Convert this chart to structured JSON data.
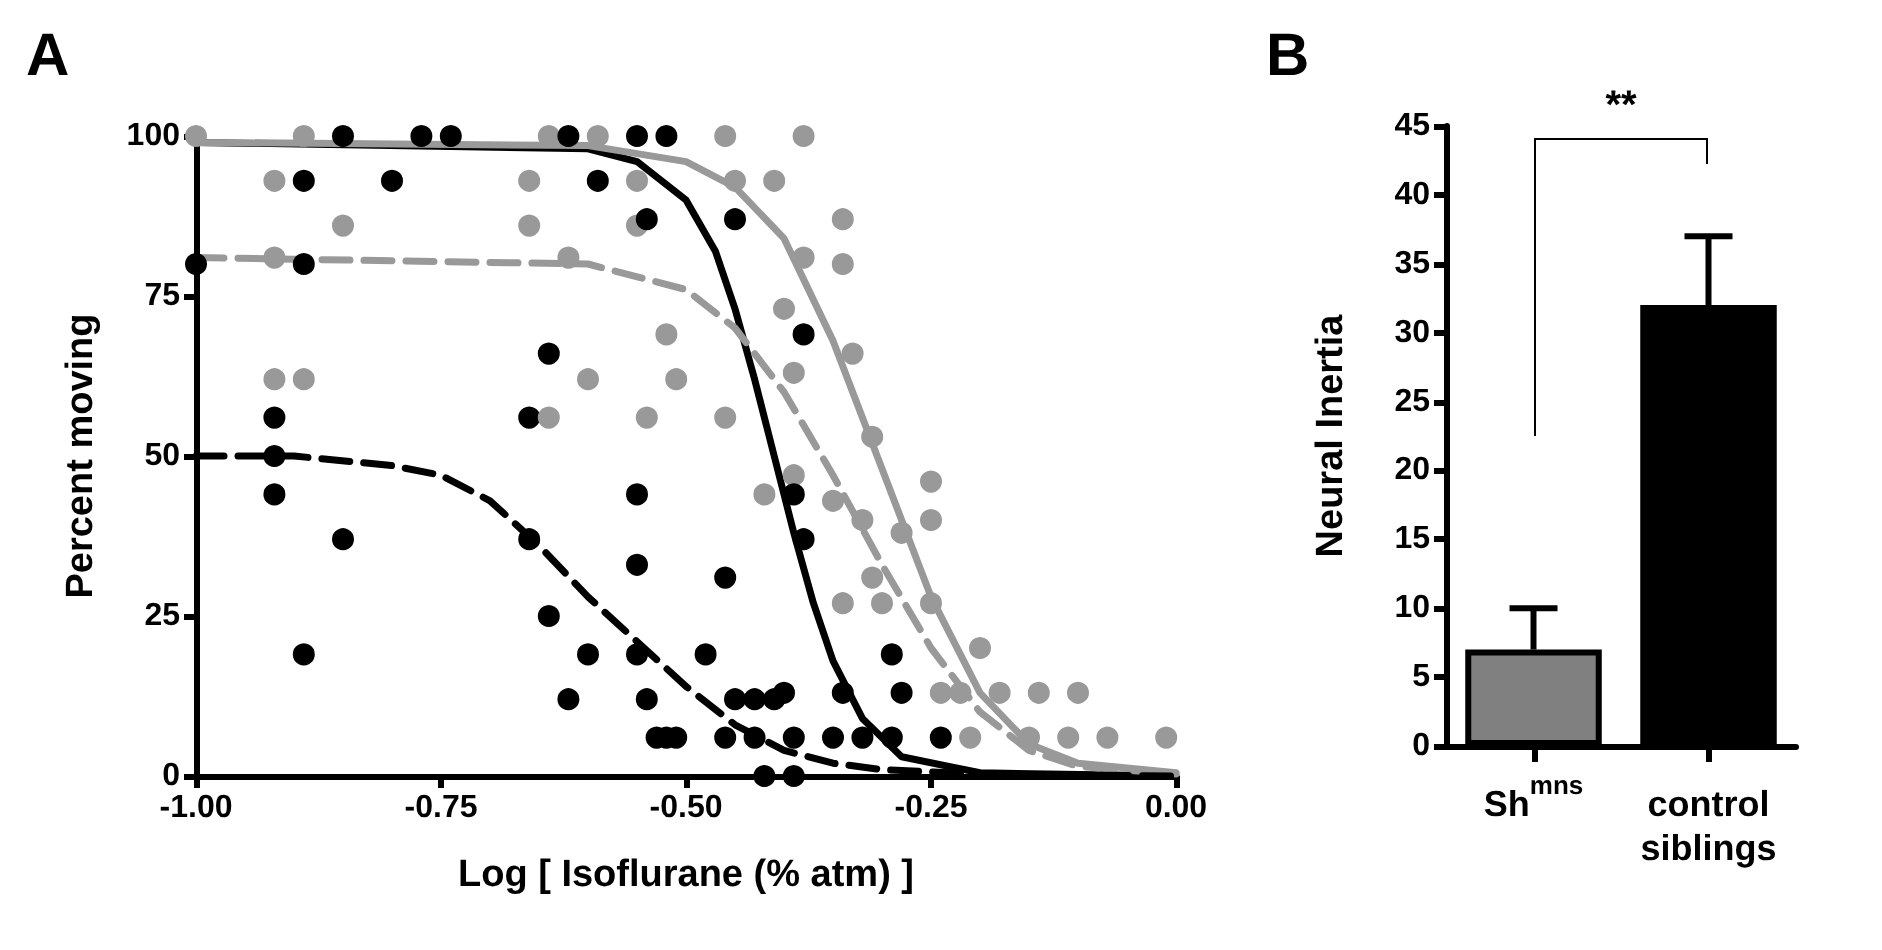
{
  "chart_data": [
    {
      "type": "scatter",
      "title": "A",
      "xlabel": "Log [ Isoflurane (% atm) ]",
      "ylabel": "Percent moving",
      "marker": "circle",
      "xlim": [
        -1,
        0
      ],
      "xticks": [
        {
          "value": -1,
          "label": "-1.00"
        },
        {
          "value": -0.75,
          "label": "-0.75"
        },
        {
          "value": -0.5,
          "label": "-0.50"
        },
        {
          "value": -0.25,
          "label": "-0.25"
        },
        {
          "value": 0,
          "label": "0.00"
        }
      ],
      "ylim": [
        0,
        100
      ],
      "yticks": [
        0,
        25,
        50,
        75,
        100
      ],
      "series": [
        {
          "type": "line",
          "marker": "none",
          "line_style": "solid",
          "color": "#000000",
          "x": [
            -1,
            -0.6,
            -0.55,
            -0.5,
            -0.47,
            -0.45,
            -0.43,
            -0.41,
            -0.39,
            -0.37,
            -0.35,
            -0.32,
            -0.28,
            -0.2,
            0
          ],
          "values": [
            99,
            98,
            96,
            90,
            82,
            73,
            62,
            50,
            38,
            27,
            18,
            9,
            3,
            0.5,
            0
          ]
        },
        {
          "type": "line",
          "marker": "none",
          "line_style": "solid",
          "color": "#999999",
          "x": [
            -1,
            -0.6,
            -0.5,
            -0.45,
            -0.4,
            -0.35,
            -0.3,
            -0.25,
            -0.2,
            -0.15,
            -0.1,
            0
          ],
          "values": [
            99,
            98.5,
            96,
            92,
            84,
            68,
            48,
            28,
            13,
            5,
            2,
            0.5
          ]
        },
        {
          "type": "line",
          "marker": "none",
          "line_style": "dashed",
          "color": "#999999",
          "x": [
            -1,
            -0.6,
            -0.5,
            -0.45,
            -0.4,
            -0.35,
            -0.3,
            -0.25,
            -0.2,
            -0.15,
            -0.1,
            0
          ],
          "values": [
            81,
            80,
            76,
            70,
            60,
            47,
            33,
            20,
            10,
            4,
            1.5,
            0.3
          ]
        },
        {
          "type": "line",
          "marker": "none",
          "line_style": "dashed",
          "color": "#000000",
          "x": [
            -1,
            -0.9,
            -0.8,
            -0.75,
            -0.7,
            -0.65,
            -0.6,
            -0.55,
            -0.5,
            -0.45,
            -0.4,
            -0.35,
            -0.3,
            -0.2,
            0
          ],
          "values": [
            50,
            50,
            48.5,
            47,
            43,
            36,
            28,
            21,
            14,
            8,
            4,
            2,
            1,
            0.3,
            0
          ]
        },
        {
          "type": "scatter",
          "color": "#000000",
          "x": [
            -1.0,
            -0.89,
            -0.92,
            -0.92,
            -0.92,
            -0.85,
            -0.89,
            -0.66,
            -0.64,
            -0.66,
            -0.55,
            -0.55,
            -0.64,
            -0.6,
            -0.55,
            -0.62,
            -0.54,
            -0.53,
            -0.51,
            -0.46,
            -0.48,
            -0.45,
            -0.43,
            -0.41,
            -0.52,
            -0.46,
            -0.43,
            -0.39,
            -0.35,
            -0.32,
            -0.42,
            -0.39
          ],
          "values": [
            80,
            80,
            56,
            50,
            44,
            37,
            19,
            56,
            66,
            37,
            44,
            33,
            25,
            19,
            19,
            12,
            12,
            6,
            6,
            31,
            19,
            12,
            12,
            12,
            6,
            6,
            6,
            6,
            6,
            6,
            0,
            0
          ]
        },
        {
          "type": "scatter",
          "color": "#999999",
          "x": [
            -0.92,
            -0.85,
            -0.66,
            -0.66,
            -0.64,
            -0.55,
            -0.92,
            -0.62,
            -0.92,
            -0.89,
            -0.64,
            -0.6,
            -0.52,
            -0.54,
            -0.51,
            -0.46,
            -0.41,
            -0.34,
            -0.33,
            -0.31,
            -0.46,
            -0.42,
            -0.39,
            -0.35,
            -0.32,
            -0.31,
            -0.34,
            -0.24,
            -0.22,
            -0.21
          ],
          "values": [
            93,
            86,
            93,
            86,
            100,
            86,
            81,
            81,
            62,
            62,
            56,
            62,
            69,
            56,
            62,
            100,
            93,
            80,
            66,
            53,
            56,
            44,
            47,
            43,
            40,
            31,
            27,
            13,
            13,
            6
          ]
        },
        {
          "type": "scatter",
          "color": "#999999",
          "x": [
            -1.0,
            -0.89,
            -0.59,
            -0.55,
            -0.38,
            -0.45,
            -0.34,
            -0.38,
            -0.4,
            -0.39,
            -0.25,
            -0.25,
            -0.28,
            -0.25,
            -0.3,
            -0.2,
            -0.18,
            -0.14,
            -0.1,
            -0.11,
            -0.07,
            -0.01,
            -0.15
          ],
          "values": [
            100,
            100,
            100,
            93,
            100,
            93,
            87,
            81,
            73,
            63,
            46,
            40,
            38,
            27,
            27,
            20,
            13,
            13,
            13,
            6,
            6,
            6,
            6
          ]
        },
        {
          "type": "scatter",
          "color": "#000000",
          "x": [
            -0.85,
            -0.77,
            -0.74,
            -0.62,
            -0.55,
            -0.52,
            -0.89,
            -0.8,
            -0.59,
            -0.54,
            -0.45,
            -0.38,
            -0.39,
            -0.38,
            -0.4,
            -0.34,
            -0.29,
            -0.28,
            -0.29,
            -0.24
          ],
          "values": [
            100,
            100,
            100,
            100,
            100,
            100,
            93,
            93,
            93,
            87,
            87,
            69,
            44,
            37,
            13,
            13,
            19,
            13,
            6,
            6
          ]
        }
      ]
    },
    {
      "type": "bar",
      "title": "B",
      "ylabel": "Neural Inertia",
      "categories": [
        "Sh$^{mns}$",
        "control\nsiblings"
      ],
      "values": [
        7,
        32
      ],
      "colors": [
        "#808080",
        "#000000"
      ],
      "errors": [
        [
          7,
          10
        ],
        [
          32,
          37
        ]
      ],
      "ylim": [
        0,
        45
      ],
      "yticks": [
        0,
        5,
        10,
        15,
        20,
        25,
        30,
        35,
        40,
        45
      ],
      "annotations": [
        "**"
      ]
    }
  ]
}
